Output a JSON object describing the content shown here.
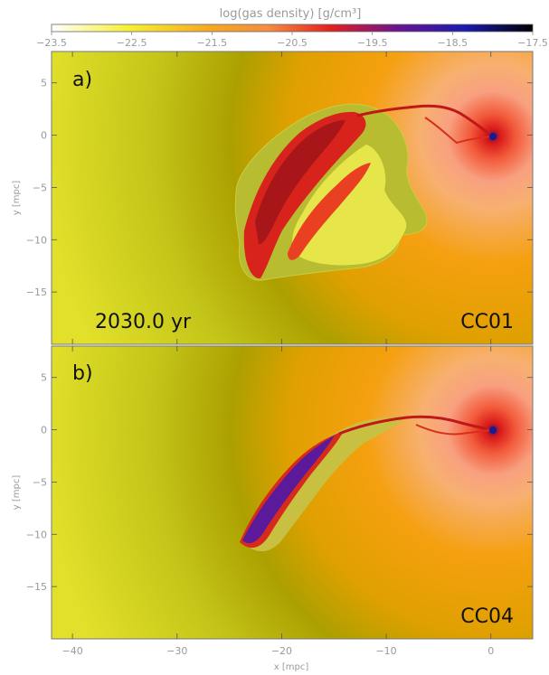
{
  "chart_data": {
    "type": "heatmap",
    "colorbar": {
      "label": "log(gas density) [g/cm³]",
      "range": [
        -23.5,
        -17.5
      ],
      "ticks": [
        -23.5,
        -22.5,
        -21.5,
        -20.5,
        -19.5,
        -18.5,
        -17.5
      ],
      "tick_labels": [
        "−23.5",
        "−22.5",
        "−21.5",
        "−20.5",
        "−19.5",
        "−18.5",
        "−17.5"
      ],
      "colors": [
        "#ffffff",
        "#f6f033",
        "#f5a820",
        "#f07020",
        "#e22020",
        "#5a1a9a",
        "#2020a0",
        "#000000"
      ],
      "placement": "top"
    },
    "xlabel": "x [mpc]",
    "ylabel": "y [mpc]",
    "xlim": [
      -42,
      4
    ],
    "xticks": [
      -40,
      -30,
      -20,
      -10,
      0
    ],
    "xtick_labels": [
      "−40",
      "−30",
      "−20",
      "−10",
      "0"
    ],
    "yticks": [
      5,
      0,
      -5,
      -10,
      -15
    ],
    "ytick_labels": [
      "5",
      "0",
      "−5",
      "−10",
      "−15"
    ],
    "panels": [
      {
        "letter": "a)",
        "model": "CC01",
        "time_label": "2030.0 yr",
        "ylim": [
          -20,
          8
        ]
      },
      {
        "letter": "b)",
        "model": "CC04",
        "time_label": "",
        "ylim": [
          -20,
          8
        ]
      }
    ]
  }
}
